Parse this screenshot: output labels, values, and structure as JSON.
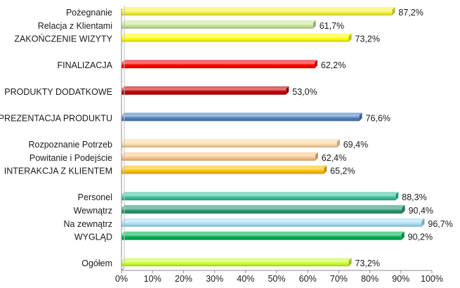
{
  "chart_data": {
    "type": "bar",
    "orientation": "horizontal",
    "xlim": [
      0,
      100
    ],
    "x_ticks": [
      "0%",
      "10%",
      "20%",
      "30%",
      "40%",
      "50%",
      "60%",
      "70%",
      "80%",
      "90%",
      "100%"
    ],
    "grid": false,
    "legend": "none",
    "bars": [
      {
        "label": "Pożegnanie",
        "value": 87.2,
        "value_label": "87,2%",
        "color": "#f5f542",
        "slot": 0
      },
      {
        "label": "Relacja z Klientami",
        "value": 61.7,
        "value_label": "61,7%",
        "color": "#c9e59a",
        "slot": 1
      },
      {
        "label": "ZAKOŃCZENIE WIZYTY",
        "value": 73.2,
        "value_label": "73,2%",
        "color": "#ffff00",
        "slot": 2
      },
      {
        "label": "FINALIZACJA",
        "value": 62.2,
        "value_label": "62,2%",
        "color": "#ff0000",
        "slot": 4
      },
      {
        "label": "PRODUKTY DODATKOWE",
        "value": 53.0,
        "value_label": "53,0%",
        "color": "#c00000",
        "slot": 6
      },
      {
        "label": "PREZENTACJA PRODUKTU",
        "value": 76.6,
        "value_label": "76,6%",
        "color": "#4f81bd",
        "slot": 8
      },
      {
        "label": "Rozpoznanie Potrzeb",
        "value": 69.4,
        "value_label": "69,4%",
        "color": "#fdd9a6",
        "slot": 10
      },
      {
        "label": "Powitanie i Podejście",
        "value": 62.4,
        "value_label": "62,4%",
        "color": "#fbc58a",
        "slot": 11
      },
      {
        "label": "INTERAKCJA Z KLIENTEM",
        "value": 65.2,
        "value_label": "65,2%",
        "color": "#ffc000",
        "slot": 12
      },
      {
        "label": "Personel",
        "value": 88.3,
        "value_label": "88,3%",
        "color": "#3cbf9c",
        "slot": 14
      },
      {
        "label": "Wewnątrz",
        "value": 90.4,
        "value_label": "90,4%",
        "color": "#2a9a72",
        "slot": 15
      },
      {
        "label": "Na zewnątrz",
        "value": 96.7,
        "value_label": "96,7%",
        "color": "#a8dff5",
        "slot": 16
      },
      {
        "label": "WYGLĄD",
        "value": 90.2,
        "value_label": "90,2%",
        "color": "#00b050",
        "slot": 17
      },
      {
        "label": "Ogółem",
        "value": 73.2,
        "value_label": "73,2%",
        "color": "#ccff33",
        "slot": 19
      }
    ]
  }
}
